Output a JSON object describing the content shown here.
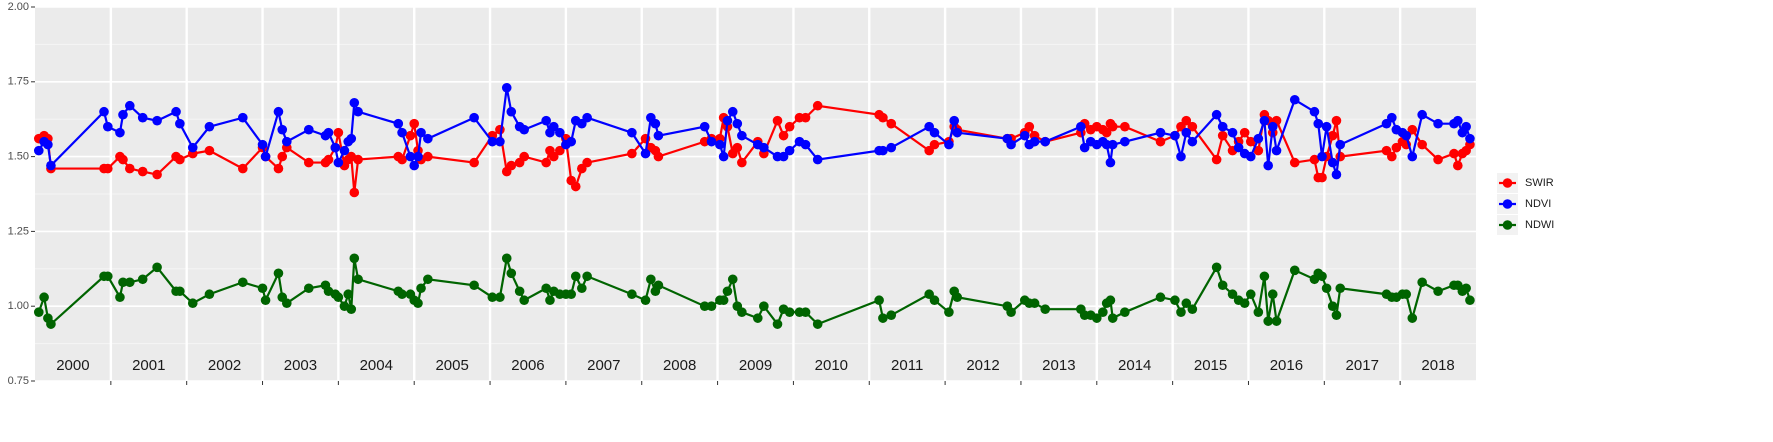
{
  "chart_data": {
    "type": "line",
    "x": [
      2000.05,
      2000.12,
      2000.17,
      2000.21,
      2000.91,
      2000.96,
      2001.12,
      2001.16,
      2001.25,
      2001.42,
      2001.61,
      2001.86,
      2001.91,
      2002.08,
      2002.3,
      2002.74,
      2003.0,
      2003.04,
      2003.21,
      2003.26,
      2003.32,
      2003.61,
      2003.83,
      2003.87,
      2003.96,
      2004.0,
      2004.08,
      2004.13,
      2004.17,
      2004.21,
      2004.26,
      2004.79,
      2004.84,
      2004.95,
      2005.0,
      2005.05,
      2005.09,
      2005.18,
      2005.79,
      2006.03,
      2006.13,
      2006.22,
      2006.28,
      2006.39,
      2006.45,
      2006.74,
      2006.79,
      2006.84,
      2006.92,
      2007.0,
      2007.07,
      2007.13,
      2007.21,
      2007.28,
      2007.87,
      2008.05,
      2008.12,
      2008.18,
      2008.22,
      2008.83,
      2008.92,
      2009.03,
      2009.08,
      2009.13,
      2009.2,
      2009.26,
      2009.32,
      2009.53,
      2009.61,
      2009.79,
      2009.87,
      2009.95,
      2010.08,
      2010.16,
      2010.32,
      2011.13,
      2011.18,
      2011.29,
      2011.79,
      2011.86,
      2012.05,
      2012.12,
      2012.16,
      2012.82,
      2012.87,
      2013.05,
      2013.11,
      2013.18,
      2013.32,
      2013.79,
      2013.84,
      2013.92,
      2014.0,
      2014.08,
      2014.13,
      2014.18,
      2014.21,
      2014.37,
      2014.84,
      2015.03,
      2015.11,
      2015.18,
      2015.26,
      2015.58,
      2015.66,
      2015.79,
      2015.87,
      2015.95,
      2016.03,
      2016.13,
      2016.21,
      2016.26,
      2016.32,
      2016.37,
      2016.61,
      2016.87,
      2016.92,
      2016.97,
      2017.03,
      2017.11,
      2017.16,
      2017.21,
      2017.82,
      2017.89,
      2017.95,
      2018.03,
      2018.08,
      2018.16,
      2018.29,
      2018.5,
      2018.71,
      2018.76,
      2018.82,
      2018.87,
      2018.92
    ],
    "series": [
      {
        "name": "SWIR",
        "color": "#ff0000",
        "values": [
          1.56,
          1.57,
          1.56,
          1.46,
          1.46,
          1.46,
          1.5,
          1.49,
          1.46,
          1.45,
          1.44,
          1.5,
          1.49,
          1.51,
          1.52,
          1.46,
          1.53,
          1.5,
          1.46,
          1.5,
          1.53,
          1.48,
          1.48,
          1.49,
          1.53,
          1.58,
          1.47,
          1.49,
          1.5,
          1.38,
          1.49,
          1.5,
          1.49,
          1.57,
          1.61,
          1.52,
          1.49,
          1.5,
          1.48,
          1.57,
          1.59,
          1.45,
          1.47,
          1.48,
          1.5,
          1.48,
          1.52,
          1.5,
          1.52,
          1.56,
          1.42,
          1.4,
          1.46,
          1.48,
          1.51,
          1.56,
          1.53,
          1.52,
          1.5,
          1.55,
          1.56,
          1.56,
          1.63,
          1.6,
          1.51,
          1.53,
          1.48,
          1.55,
          1.51,
          1.62,
          1.57,
          1.6,
          1.63,
          1.63,
          1.67,
          1.64,
          1.63,
          1.61,
          1.52,
          1.54,
          1.55,
          1.6,
          1.59,
          1.56,
          1.56,
          1.58,
          1.6,
          1.57,
          1.55,
          1.58,
          1.61,
          1.59,
          1.6,
          1.59,
          1.58,
          1.61,
          1.6,
          1.6,
          1.55,
          1.57,
          1.6,
          1.62,
          1.6,
          1.49,
          1.57,
          1.52,
          1.55,
          1.58,
          1.55,
          1.52,
          1.64,
          1.62,
          1.58,
          1.62,
          1.48,
          1.49,
          1.43,
          1.43,
          1.5,
          1.57,
          1.62,
          1.5,
          1.52,
          1.5,
          1.53,
          1.55,
          1.54,
          1.59,
          1.54,
          1.49,
          1.51,
          1.47,
          1.51,
          1.52,
          1.54
        ]
      },
      {
        "name": "NDVI",
        "color": "#0000ff",
        "values": [
          1.52,
          1.55,
          1.54,
          1.47,
          1.65,
          1.6,
          1.58,
          1.64,
          1.67,
          1.63,
          1.62,
          1.65,
          1.61,
          1.53,
          1.6,
          1.63,
          1.54,
          1.5,
          1.65,
          1.59,
          1.55,
          1.59,
          1.57,
          1.58,
          1.53,
          1.48,
          1.52,
          1.55,
          1.56,
          1.68,
          1.65,
          1.61,
          1.58,
          1.5,
          1.47,
          1.5,
          1.58,
          1.56,
          1.63,
          1.55,
          1.55,
          1.73,
          1.65,
          1.6,
          1.59,
          1.62,
          1.58,
          1.6,
          1.58,
          1.54,
          1.55,
          1.62,
          1.61,
          1.63,
          1.58,
          1.51,
          1.63,
          1.61,
          1.57,
          1.6,
          1.55,
          1.54,
          1.5,
          1.62,
          1.65,
          1.61,
          1.57,
          1.54,
          1.53,
          1.5,
          1.5,
          1.52,
          1.55,
          1.54,
          1.49,
          1.52,
          1.52,
          1.53,
          1.6,
          1.58,
          1.54,
          1.62,
          1.58,
          1.56,
          1.54,
          1.57,
          1.54,
          1.55,
          1.55,
          1.6,
          1.53,
          1.55,
          1.54,
          1.55,
          1.54,
          1.48,
          1.54,
          1.55,
          1.58,
          1.57,
          1.5,
          1.58,
          1.55,
          1.64,
          1.6,
          1.58,
          1.53,
          1.51,
          1.5,
          1.56,
          1.62,
          1.47,
          1.6,
          1.52,
          1.69,
          1.65,
          1.61,
          1.5,
          1.6,
          1.48,
          1.44,
          1.54,
          1.61,
          1.63,
          1.59,
          1.58,
          1.57,
          1.5,
          1.64,
          1.61,
          1.61,
          1.62,
          1.58,
          1.6,
          1.56
        ]
      },
      {
        "name": "NDWI",
        "color": "#006400",
        "values": [
          0.98,
          1.03,
          0.96,
          0.94,
          1.1,
          1.1,
          1.03,
          1.08,
          1.08,
          1.09,
          1.13,
          1.05,
          1.05,
          1.01,
          1.04,
          1.08,
          1.06,
          1.02,
          1.11,
          1.03,
          1.01,
          1.06,
          1.07,
          1.05,
          1.04,
          1.03,
          1.0,
          1.04,
          0.99,
          1.16,
          1.09,
          1.05,
          1.04,
          1.04,
          1.02,
          1.01,
          1.06,
          1.09,
          1.07,
          1.03,
          1.03,
          1.16,
          1.11,
          1.05,
          1.02,
          1.06,
          1.02,
          1.05,
          1.04,
          1.04,
          1.04,
          1.1,
          1.06,
          1.1,
          1.04,
          1.02,
          1.09,
          1.05,
          1.07,
          1.0,
          1.0,
          1.02,
          1.02,
          1.05,
          1.09,
          1.0,
          0.98,
          0.96,
          1.0,
          0.94,
          0.99,
          0.98,
          0.98,
          0.98,
          0.94,
          1.02,
          0.96,
          0.97,
          1.04,
          1.02,
          0.98,
          1.05,
          1.03,
          1.0,
          0.98,
          1.02,
          1.01,
          1.01,
          0.99,
          0.99,
          0.97,
          0.97,
          0.96,
          0.98,
          1.01,
          1.02,
          0.96,
          0.98,
          1.03,
          1.02,
          0.98,
          1.01,
          0.99,
          1.13,
          1.07,
          1.04,
          1.02,
          1.01,
          1.04,
          0.98,
          1.1,
          0.95,
          1.04,
          0.95,
          1.12,
          1.09,
          1.11,
          1.1,
          1.06,
          1.0,
          0.97,
          1.06,
          1.04,
          1.03,
          1.03,
          1.04,
          1.04,
          0.96,
          1.08,
          1.05,
          1.07,
          1.07,
          1.05,
          1.06,
          1.02
        ]
      }
    ],
    "xlim": [
      2000,
      2019
    ],
    "xticks": [
      {
        "value": 2000.5,
        "label": "2000"
      },
      {
        "value": 2001.5,
        "label": "2001"
      },
      {
        "value": 2002.5,
        "label": "2002"
      },
      {
        "value": 2003.5,
        "label": "2003"
      },
      {
        "value": 2004.5,
        "label": "2004"
      },
      {
        "value": 2005.5,
        "label": "2005"
      },
      {
        "value": 2006.5,
        "label": "2006"
      },
      {
        "value": 2007.5,
        "label": "2007"
      },
      {
        "value": 2008.5,
        "label": "2008"
      },
      {
        "value": 2009.5,
        "label": "2009"
      },
      {
        "value": 2010.5,
        "label": "2010"
      },
      {
        "value": 2011.5,
        "label": "2011"
      },
      {
        "value": 2012.5,
        "label": "2012"
      },
      {
        "value": 2013.5,
        "label": "2013"
      },
      {
        "value": 2014.5,
        "label": "2014"
      },
      {
        "value": 2015.5,
        "label": "2015"
      },
      {
        "value": 2016.5,
        "label": "2016"
      },
      {
        "value": 2017.5,
        "label": "2017"
      },
      {
        "value": 2018.5,
        "label": "2018"
      }
    ],
    "ylim": [
      0.75,
      2.0
    ],
    "yticks": [
      {
        "value": 0.75,
        "label": "0.75"
      },
      {
        "value": 1.0,
        "label": "1.00"
      },
      {
        "value": 1.25,
        "label": "1.25"
      },
      {
        "value": 1.5,
        "label": "1.50"
      },
      {
        "value": 1.75,
        "label": "1.75"
      },
      {
        "value": 2.0,
        "label": "2.00"
      }
    ],
    "grid": true,
    "legend": "right"
  }
}
